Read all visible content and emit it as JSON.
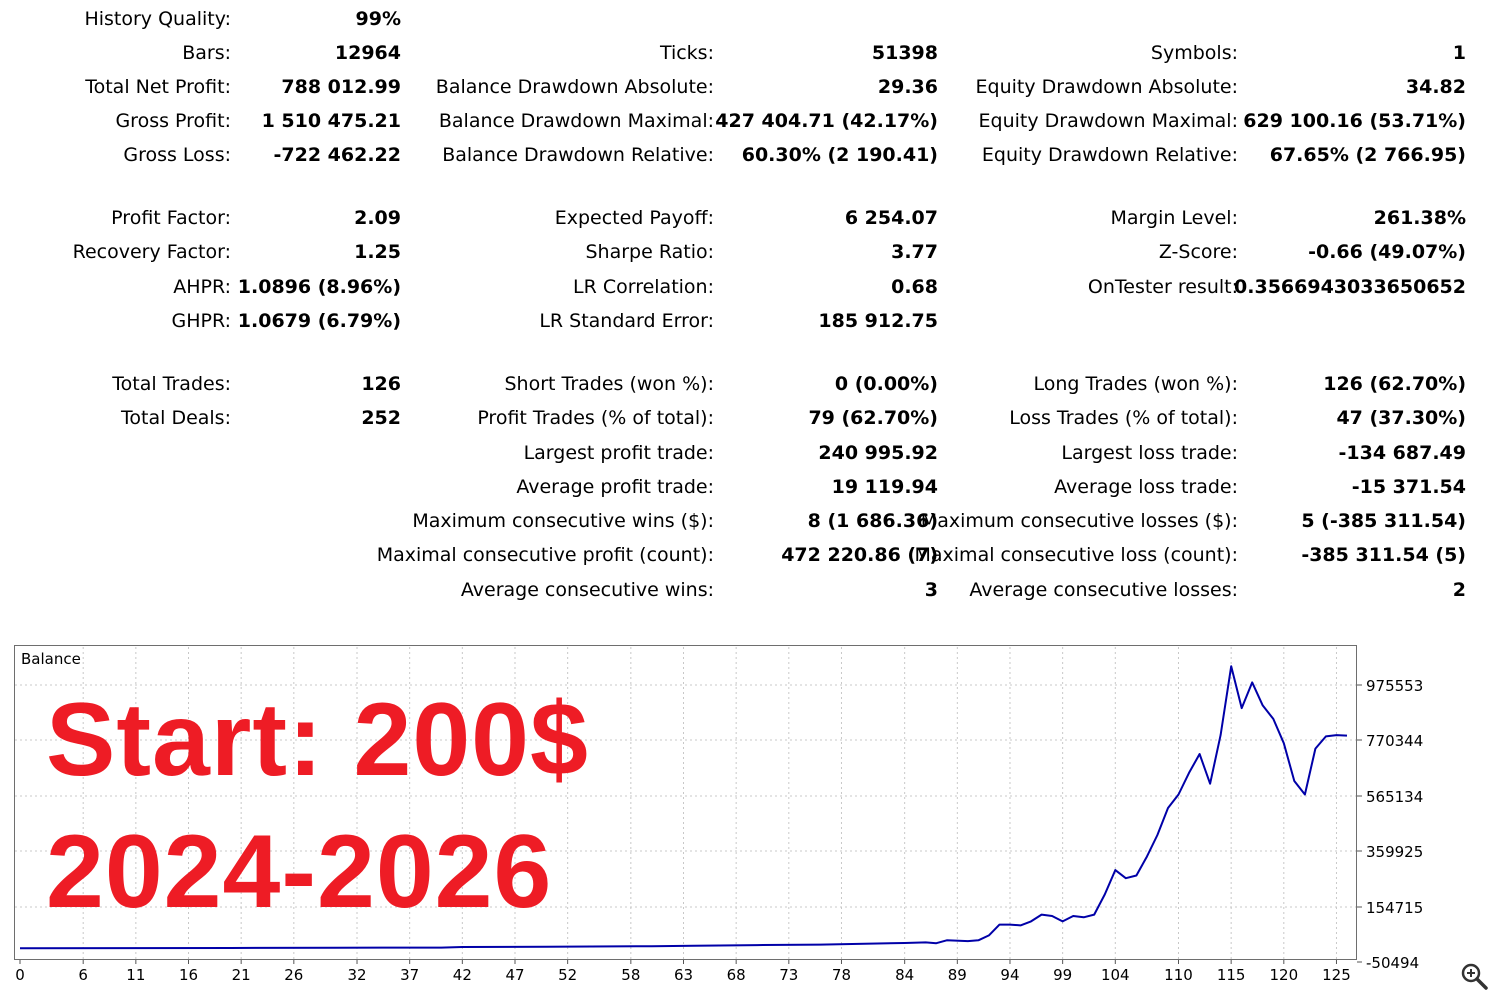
{
  "stats": {
    "history_quality": {
      "label": "History Quality:",
      "value": "99%"
    },
    "bars": {
      "label": "Bars:",
      "value": "12964"
    },
    "ticks": {
      "label": "Ticks:",
      "value": "51398"
    },
    "symbols": {
      "label": "Symbols:",
      "value": "1"
    },
    "total_net_profit": {
      "label": "Total Net Profit:",
      "value": "788 012.99"
    },
    "balance_dd_absolute": {
      "label": "Balance Drawdown Absolute:",
      "value": "29.36"
    },
    "equity_dd_absolute": {
      "label": "Equity Drawdown Absolute:",
      "value": "34.82"
    },
    "gross_profit": {
      "label": "Gross Profit:",
      "value": "1 510 475.21"
    },
    "balance_dd_maximal": {
      "label": "Balance Drawdown Maximal:",
      "value": "427 404.71 (42.17%)"
    },
    "equity_dd_maximal": {
      "label": "Equity Drawdown Maximal:",
      "value": "629 100.16 (53.71%)"
    },
    "gross_loss": {
      "label": "Gross Loss:",
      "value": "-722 462.22"
    },
    "balance_dd_relative": {
      "label": "Balance Drawdown Relative:",
      "value": "60.30% (2 190.41)"
    },
    "equity_dd_relative": {
      "label": "Equity Drawdown Relative:",
      "value": "67.65% (2 766.95)"
    },
    "profit_factor": {
      "label": "Profit Factor:",
      "value": "2.09"
    },
    "expected_payoff": {
      "label": "Expected Payoff:",
      "value": "6 254.07"
    },
    "margin_level": {
      "label": "Margin Level:",
      "value": "261.38%"
    },
    "recovery_factor": {
      "label": "Recovery Factor:",
      "value": "1.25"
    },
    "sharpe_ratio": {
      "label": "Sharpe Ratio:",
      "value": "3.77"
    },
    "z_score": {
      "label": "Z-Score:",
      "value": "-0.66 (49.07%)"
    },
    "ahpr": {
      "label": "AHPR:",
      "value": "1.0896 (8.96%)"
    },
    "lr_correlation": {
      "label": "LR Correlation:",
      "value": "0.68"
    },
    "ontester_result": {
      "label": "OnTester result:",
      "value": "0.3566943033650652"
    },
    "ghpr": {
      "label": "GHPR:",
      "value": "1.0679 (6.79%)"
    },
    "lr_standard_error": {
      "label": "LR Standard Error:",
      "value": "185 912.75"
    },
    "total_trades": {
      "label": "Total Trades:",
      "value": "126"
    },
    "short_trades": {
      "label": "Short Trades (won %):",
      "value": "0 (0.00%)"
    },
    "long_trades": {
      "label": "Long Trades (won %):",
      "value": "126 (62.70%)"
    },
    "total_deals": {
      "label": "Total Deals:",
      "value": "252"
    },
    "profit_trades": {
      "label": "Profit Trades (% of total):",
      "value": "79 (62.70%)"
    },
    "loss_trades": {
      "label": "Loss Trades (% of total):",
      "value": "47 (37.30%)"
    },
    "largest_profit_trade": {
      "label": "Largest profit trade:",
      "value": "240 995.92"
    },
    "largest_loss_trade": {
      "label": "Largest loss trade:",
      "value": "-134 687.49"
    },
    "average_profit_trade": {
      "label": "Average profit trade:",
      "value": "19 119.94"
    },
    "average_loss_trade": {
      "label": "Average loss trade:",
      "value": "-15 371.54"
    },
    "max_consecutive_wins": {
      "label": "Maximum consecutive wins ($):",
      "value": "8 (1 686.36)"
    },
    "max_consecutive_losses": {
      "label": "Maximum consecutive losses ($):",
      "value": "5 (-385 311.54)"
    },
    "maximal_consecutive_profit": {
      "label": "Maximal consecutive profit (count):",
      "value": "472 220.86 (7)"
    },
    "maximal_consecutive_loss": {
      "label": "Maximal consecutive loss (count):",
      "value": "-385 311.54 (5)"
    },
    "average_consecutive_wins": {
      "label": "Average consecutive wins:",
      "value": "3"
    },
    "average_consecutive_losses": {
      "label": "Average consecutive losses:",
      "value": "2"
    }
  },
  "overlay": {
    "line1": "Start: 200$",
    "line2": "2024-2026",
    "color": "#ee1c25"
  },
  "icons": {
    "zoom": "zoom-in-magnifier-icon"
  },
  "chart_data": {
    "type": "line",
    "title": "Balance",
    "series": [
      {
        "color": "#0000a8",
        "x": [
          0,
          10,
          20,
          30,
          40,
          42,
          50,
          60,
          64,
          70,
          76,
          84,
          86,
          87,
          88,
          90,
          91,
          92,
          93,
          94,
          95,
          96,
          97,
          98,
          99,
          100,
          101,
          102,
          103,
          104,
          105,
          106,
          107,
          108,
          109,
          110,
          111,
          112,
          113,
          114,
          115,
          116,
          117,
          118,
          119,
          120,
          121,
          122,
          123,
          124,
          125,
          126
        ],
        "y": [
          200,
          1000,
          1500,
          2500,
          3000,
          5000,
          6000,
          8000,
          10000,
          12000,
          14000,
          20000,
          22000,
          19000,
          30000,
          27000,
          30000,
          48000,
          88000,
          88000,
          85000,
          100000,
          125000,
          120000,
          100000,
          120000,
          115000,
          125000,
          200000,
          290000,
          260000,
          270000,
          340000,
          420000,
          520000,
          570000,
          650000,
          720000,
          610000,
          790000,
          1045000,
          890000,
          985000,
          900000,
          850000,
          760000,
          620000,
          570000,
          740000,
          785000,
          790000,
          788213
        ]
      }
    ],
    "xticks": [
      0,
      6,
      11,
      16,
      21,
      26,
      32,
      37,
      42,
      47,
      52,
      58,
      63,
      68,
      73,
      78,
      84,
      89,
      94,
      99,
      104,
      110,
      115,
      120,
      125
    ],
    "yticks": [
      975553,
      770344,
      565134,
      359925,
      154715,
      -50494
    ],
    "xlim": [
      0,
      126
    ],
    "ylim": [
      -50494,
      1060000
    ],
    "grid": true,
    "legend": "none"
  }
}
